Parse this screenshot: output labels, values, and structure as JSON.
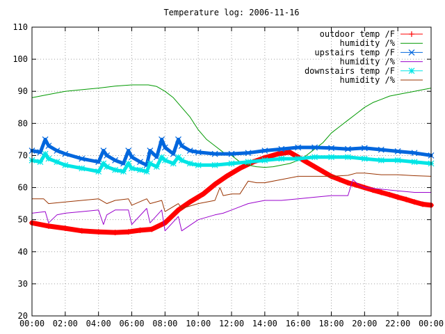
{
  "chart_data": {
    "type": "line",
    "title": "Temperature log: 2006-11-16",
    "xlabel": "",
    "ylabel": "",
    "xlim": [
      0,
      24
    ],
    "ylim": [
      20,
      110
    ],
    "grid": true,
    "legend_position": "top-right",
    "xticks": [
      0,
      2,
      4,
      6,
      8,
      10,
      12,
      14,
      16,
      18,
      20,
      22,
      24
    ],
    "xtick_labels": [
      "00:00",
      "02:00",
      "04:00",
      "06:00",
      "08:00",
      "10:00",
      "12:00",
      "14:00",
      "16:00",
      "18:00",
      "20:00",
      "22:00",
      "00:00"
    ],
    "yticks": [
      20,
      30,
      40,
      50,
      60,
      70,
      80,
      90,
      100,
      110
    ],
    "ytick_labels": [
      "20",
      "30",
      "40",
      "50",
      "60",
      "70",
      "80",
      "90",
      "100",
      "110"
    ],
    "series": [
      {
        "name": "outdoor temp /F",
        "color": "#ff0000",
        "marker": "plus",
        "x": [
          0,
          1,
          2,
          3,
          4,
          5,
          5.8,
          6.5,
          7.2,
          8,
          8.8,
          9.5,
          10.3,
          11,
          11.7,
          12.5,
          13.3,
          14,
          14.8,
          15.5,
          16,
          16.5,
          17,
          17.5,
          18,
          18.5,
          19,
          19.5,
          20,
          20.5,
          21,
          21.5,
          22,
          22.5,
          23,
          23.5,
          24
        ],
        "y": [
          49,
          48,
          47.3,
          46.5,
          46.2,
          46,
          46.2,
          46.7,
          47,
          49,
          53,
          55.5,
          58,
          61,
          63.5,
          66,
          68,
          69.3,
          70.5,
          71,
          69.5,
          68,
          66.5,
          65,
          63.5,
          62.5,
          61.5,
          60.8,
          60,
          59.2,
          58.5,
          57.8,
          57,
          56.3,
          55.5,
          54.8,
          54.5
        ]
      },
      {
        "name": "humidity /%",
        "color": "#009900",
        "marker": "none",
        "x": [
          0,
          1,
          2,
          3,
          4,
          5,
          6,
          7,
          7.5,
          8,
          8.5,
          9,
          9.5,
          10,
          10.5,
          11,
          11.5,
          12,
          12.5,
          13,
          13.5,
          14,
          14.5,
          15,
          15.5,
          16,
          16.5,
          17,
          17.5,
          18,
          18.5,
          19,
          19.5,
          20,
          20.5,
          21,
          21.5,
          22,
          22.5,
          23,
          23.5,
          24
        ],
        "y": [
          88,
          89,
          90,
          90.5,
          91,
          91.6,
          92,
          92,
          91.5,
          90,
          88,
          85,
          82,
          78,
          75,
          73,
          71,
          70,
          68,
          67,
          66.5,
          66.3,
          66.5,
          67,
          67.5,
          68.5,
          70,
          72,
          74,
          77,
          79,
          81,
          83,
          85,
          86.5,
          87.5,
          88.5,
          89,
          89.5,
          90,
          90.5,
          91
        ]
      },
      {
        "name": "upstairs temp /F",
        "color": "#0066dd",
        "marker": "x",
        "x": [
          0,
          0.5,
          0.8,
          1,
          1.5,
          2,
          3,
          4,
          4.3,
          4.5,
          5,
          5.5,
          5.8,
          6,
          6.5,
          6.9,
          7.1,
          7.5,
          7.8,
          8,
          8.5,
          8.8,
          9,
          9.5,
          10,
          11,
          12,
          13,
          14,
          15,
          16,
          17,
          18,
          19,
          20,
          21,
          22,
          23,
          24
        ],
        "y": [
          71.5,
          71,
          75,
          73,
          71.5,
          70.5,
          69,
          68,
          71.5,
          70,
          68.5,
          67.5,
          71.5,
          69.5,
          68,
          67,
          71.5,
          69.5,
          75,
          72.5,
          70.5,
          75,
          73,
          71.5,
          71,
          70.5,
          70.5,
          70.8,
          71.5,
          72,
          72.5,
          72.5,
          72.3,
          72,
          72.3,
          71.8,
          71.3,
          70.8,
          70
        ]
      },
      {
        "name": "humidity /%",
        "color": "#9900cc",
        "marker": "none",
        "x": [
          0,
          0.8,
          1,
          1.5,
          2,
          3,
          4,
          4.3,
          4.5,
          5,
          5.8,
          6,
          6.9,
          7.1,
          7.8,
          8,
          8.8,
          9,
          10,
          11,
          11.5,
          12,
          12.5,
          13,
          13.5,
          14,
          15,
          16,
          17,
          18,
          19,
          19.3,
          19.6,
          20,
          21,
          22,
          23,
          24
        ],
        "y": [
          52,
          52.5,
          49,
          51.5,
          52,
          52.5,
          53,
          48.5,
          51.5,
          53,
          53,
          48.5,
          53.5,
          49,
          53,
          46.5,
          51,
          46.5,
          50,
          51.5,
          52,
          53,
          54,
          55,
          55.5,
          56,
          56,
          56.5,
          57,
          57.5,
          57.5,
          62.5,
          61,
          60,
          59.5,
          59,
          58.5,
          58.5
        ]
      },
      {
        "name": "downstairs temp /F",
        "color": "#00e5e5",
        "marker": "star",
        "x": [
          0,
          0.5,
          0.8,
          1,
          1.5,
          2,
          3,
          4,
          4.3,
          4.5,
          5,
          5.5,
          5.8,
          6,
          6.5,
          6.9,
          7.1,
          7.5,
          7.8,
          8,
          8.5,
          8.8,
          9,
          9.5,
          10,
          11,
          12,
          13,
          14,
          15,
          16,
          17,
          18,
          19,
          20,
          21,
          22,
          23,
          24
        ],
        "y": [
          68.5,
          68,
          70.5,
          69,
          68,
          67,
          66,
          65,
          67.5,
          66.5,
          65.5,
          65,
          67.5,
          66,
          65.5,
          65,
          67.5,
          66.5,
          69.5,
          68.5,
          67.5,
          69.5,
          68.5,
          67.5,
          67,
          67,
          67.5,
          68,
          68.5,
          69,
          69,
          69.5,
          69.5,
          69.5,
          69,
          68.5,
          68.5,
          68,
          67.5
        ]
      },
      {
        "name": "humidity /%",
        "color": "#993300",
        "marker": "none",
        "x": [
          0,
          0.7,
          1,
          2,
          3,
          4,
          4.5,
          5,
          5.8,
          6,
          6.9,
          7.1,
          7.8,
          8,
          8.8,
          9,
          10,
          11,
          11.3,
          11.5,
          12,
          12.5,
          13,
          13.5,
          14,
          15,
          16,
          17,
          18,
          19,
          19.5,
          20,
          21,
          22,
          23,
          24
        ],
        "y": [
          56.5,
          56.5,
          55,
          55.5,
          56,
          56.5,
          55,
          56,
          56.5,
          54.5,
          56.5,
          55,
          56,
          52.5,
          55,
          53.5,
          55,
          56,
          60,
          57.5,
          58,
          58,
          62,
          61.5,
          61.5,
          62.5,
          63.5,
          63.5,
          63.5,
          63.8,
          64.5,
          64.5,
          64,
          64,
          63.7,
          63.5
        ]
      }
    ]
  }
}
